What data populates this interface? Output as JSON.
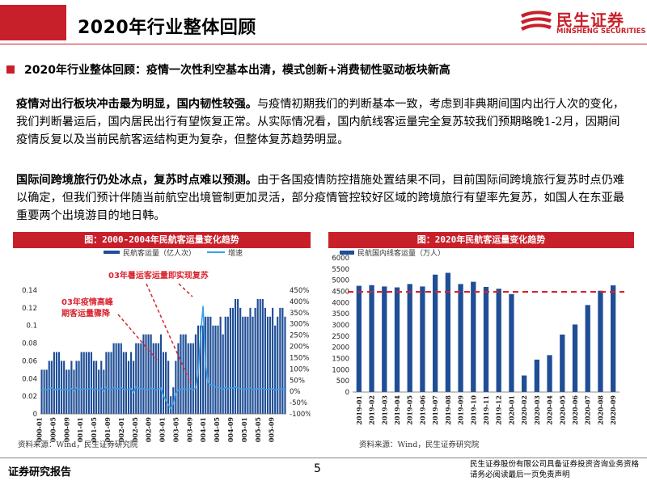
{
  "header": {
    "title": "2020年行业整体回顾",
    "logo_cn": "民生证券",
    "logo_en": "MINSHENG SECURITIES"
  },
  "section": {
    "heading": "2020年行业整体回顾：疫情一次性利空基本出清，模式创新+消费韧性驱动板块新高"
  },
  "paragraphs": [
    {
      "bold": "疫情对出行板块冲击最为明显，国内韧性较强。",
      "text": "与疫情初期我们的判断基本一致，考虑到非典期间国内出行人次的变化，我们判断暑运后，国内居民出行有望恢复正常。从实际情况看，国内航线客运量完全复苏较我们预期略晚1-2月，因期间疫情反复以及当前民航客运结构更为复杂，但整体复苏趋势明显。"
    },
    {
      "bold": "国际间跨境旅行仍处冰点，复苏时点难以预测。",
      "text": "由于各国疫情防控措施处置结果不同，目前国际间跨境旅行复苏时点仍难以确定，但我们预计伴随当前航空出境管制更加灵活，部分疫情管控较好区域的跨境旅行有望率先复苏，如国人在东亚最重要两个出境游目的地日韩。"
    }
  ],
  "colors": {
    "brand_red": "#c8202a",
    "bar_blue": "#1f4e96",
    "line_blue": "#3aa0e8",
    "ref_red": "#d9232e"
  },
  "chart_data": [
    {
      "type": "bar",
      "title": "图：2000-2004年民航客运量变化趋势",
      "legend": [
        "民航客运量（亿人次）",
        "增速"
      ],
      "legend_placement": "top",
      "x_tick_labels": [
        "2000-01",
        "2000-05",
        "2000-09",
        "2001-01",
        "2001-05",
        "2001-09",
        "2002-01",
        "2002-05",
        "2002-09",
        "2003-01",
        "2003-05",
        "2003-09",
        "2004-01",
        "2004-05",
        "2004-09",
        "2005-01",
        "2005-05",
        "2005-09"
      ],
      "ylim_left": [
        0,
        0.14
      ],
      "y_left_ticks": [
        "0",
        "0.02",
        "0.04",
        "0.06",
        "0.08",
        "0.1",
        "0.12",
        "0.14"
      ],
      "ylim_right": [
        -100,
        450
      ],
      "y_right_ticks": [
        "-100%",
        "-50%",
        "0%",
        "50%",
        "100%",
        "150%",
        "200%",
        "250%",
        "300%",
        "350%",
        "400%",
        "450%"
      ],
      "series": [
        {
          "name": "民航客运量（亿人次）",
          "type": "bar",
          "values": [
            0.05,
            0.05,
            0.05,
            0.06,
            0.06,
            0.07,
            0.07,
            0.07,
            0.06,
            0.06,
            0.05,
            0.05,
            0.06,
            0.05,
            0.06,
            0.06,
            0.07,
            0.07,
            0.07,
            0.07,
            0.07,
            0.06,
            0.06,
            0.05,
            0.06,
            0.05,
            0.07,
            0.07,
            0.07,
            0.08,
            0.08,
            0.08,
            0.08,
            0.07,
            0.07,
            0.06,
            0.07,
            0.06,
            0.08,
            0.08,
            0.08,
            0.09,
            0.09,
            0.09,
            0.09,
            0.08,
            0.08,
            0.08,
            0.09,
            0.07,
            0.07,
            0.06,
            0.02,
            0.03,
            0.06,
            0.08,
            0.09,
            0.09,
            0.09,
            0.08,
            0.08,
            0.08,
            0.09,
            0.1,
            0.1,
            0.1,
            0.11,
            0.11,
            0.11,
            0.1,
            0.1,
            0.1,
            0.11,
            0.09,
            0.11,
            0.11,
            0.12,
            0.12,
            0.13,
            0.13,
            0.12,
            0.11,
            0.11,
            0.11,
            0.12,
            0.11,
            0.12,
            0.13,
            0.13,
            0.13,
            0.12,
            0.11,
            0.11,
            0.12,
            0.1,
            0.11,
            0.12,
            0.12,
            0.11
          ],
          "color": "#1f4e96"
        },
        {
          "name": "增速",
          "type": "line",
          "axis": "right",
          "values": [
            5,
            10,
            8,
            12,
            15,
            7,
            9,
            11,
            6,
            8,
            10,
            5,
            12,
            3,
            15,
            10,
            8,
            12,
            9,
            11,
            13,
            7,
            10,
            6,
            14,
            2,
            18,
            12,
            9,
            15,
            13,
            11,
            16,
            9,
            8,
            10,
            12,
            -5,
            20,
            14,
            12,
            11,
            10,
            9,
            13,
            12,
            6,
            10,
            15,
            -20,
            -40,
            -60,
            -75,
            -55,
            -10,
            5,
            8,
            12,
            10,
            9,
            11,
            8,
            15,
            80,
            250,
            380,
            120,
            40,
            30,
            25,
            20,
            18,
            15,
            10,
            18,
            12,
            16,
            14,
            20,
            15,
            12,
            10,
            9,
            11,
            14,
            8,
            10,
            12,
            11,
            13,
            9,
            8,
            10,
            12,
            6,
            9,
            11,
            10,
            8
          ],
          "color": "#3aa0e8"
        }
      ],
      "annotations": [
        "03年疫情高峰期客运量骤降",
        "03年暑运客运量即实现复苏"
      ]
    },
    {
      "type": "bar",
      "title": "图：2020年民航客运量变化趋势",
      "legend": [
        "民航国内线客运量（万人）"
      ],
      "legend_placement": "top-left",
      "categories": [
        "2019-01",
        "2019-02",
        "2019-03",
        "2019-04",
        "2019-05",
        "2019-06",
        "2019-07",
        "2019-08",
        "2019-09",
        "2019-10",
        "2019-11",
        "2019-12",
        "2020-01",
        "2020-02",
        "2020-03",
        "2020-04",
        "2020-05",
        "2020-06",
        "2020-07",
        "2020-08",
        "2020-09"
      ],
      "values": [
        4750,
        4780,
        4720,
        4680,
        4830,
        4720,
        5250,
        5330,
        4830,
        4930,
        4700,
        4620,
        4380,
        740,
        1450,
        1650,
        2570,
        3020,
        3890,
        4530,
        4770
      ],
      "ylim": [
        0,
        6000
      ],
      "y_ticks": [
        "0",
        "500",
        "1000",
        "1500",
        "2000",
        "2500",
        "3000",
        "3500",
        "4000",
        "4500",
        "5000",
        "5500",
        "6000"
      ],
      "reference_line": 4480,
      "grid": false
    }
  ],
  "sources": {
    "left": "资料来源：Wind，民生证券研究院",
    "right": "资料来源：Wind，民生证券研究院"
  },
  "footer": {
    "left": "证券研究报告",
    "page": "5",
    "disclaimer_line1": "民生证券股份有限公司具备证券投资咨询业务资格",
    "disclaimer_line2": "请务必阅读最后一页免责声明"
  }
}
